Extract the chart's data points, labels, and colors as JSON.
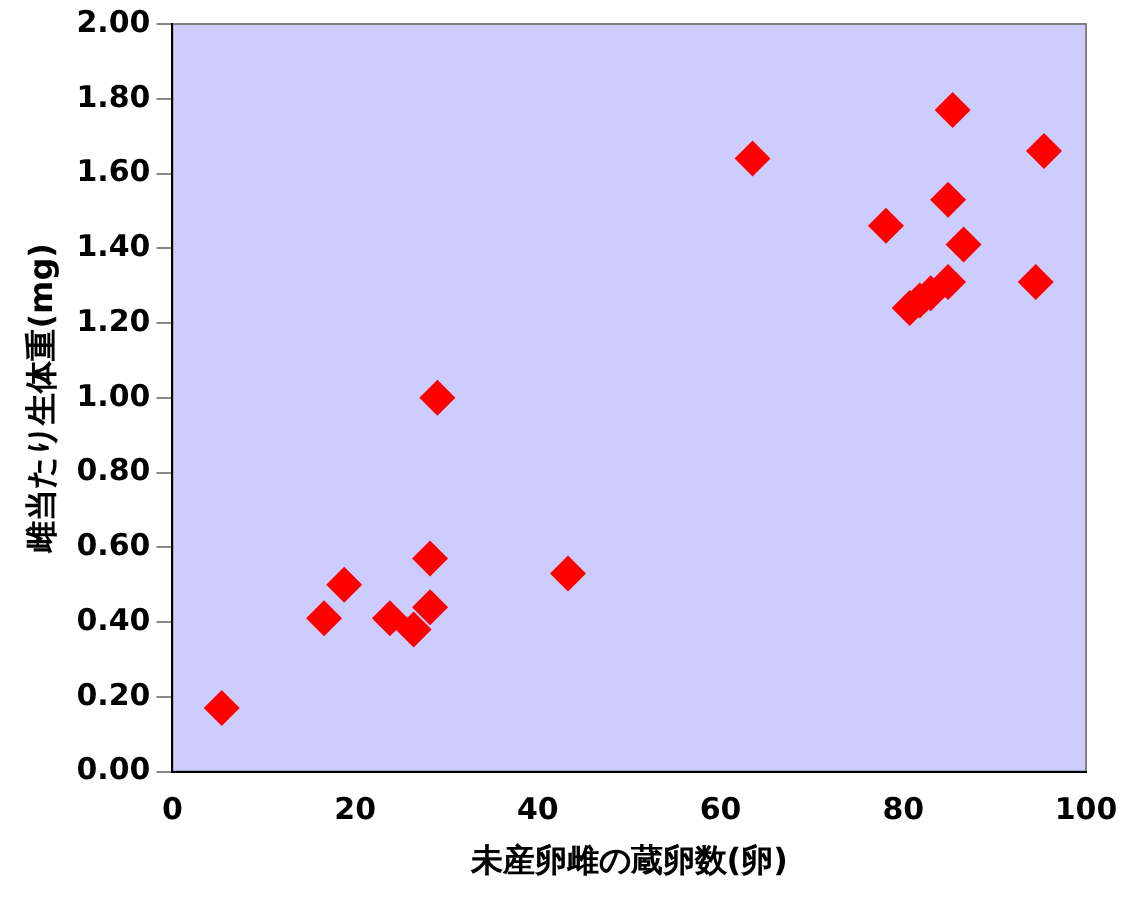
{
  "chart_data": {
    "type": "scatter",
    "xlabel": "未産卵雌の蔵卵数(卵)",
    "ylabel": "雌当たり生体重(mg)",
    "x": [
      5.4,
      16.6,
      18.8,
      23.8,
      26.4,
      28.2,
      28.2,
      29.0,
      43.3,
      63.5,
      78.1,
      80.7,
      81.8,
      83.0,
      84.9,
      84.9,
      85.4,
      86.6,
      94.5,
      95.4
    ],
    "values": [
      0.17,
      0.41,
      0.5,
      0.41,
      0.38,
      0.44,
      0.57,
      1.0,
      0.53,
      1.64,
      1.46,
      1.24,
      1.26,
      1.28,
      1.31,
      1.53,
      1.77,
      1.41,
      1.31,
      1.66
    ],
    "color": "#ff0000",
    "marker": "diamond",
    "xlim": [
      0,
      100
    ],
    "xticks": [
      0,
      20,
      40,
      60,
      80,
      100
    ],
    "ylim": [
      0,
      2
    ],
    "yticks": [
      {
        "value": 0,
        "label": "0.00"
      },
      {
        "value": 0.2,
        "label": "0.20"
      },
      {
        "value": 0.4,
        "label": "0.40"
      },
      {
        "value": 0.6,
        "label": "0.60"
      },
      {
        "value": 0.8,
        "label": "0.80"
      },
      {
        "value": 1,
        "label": "1.00"
      },
      {
        "value": 1.2,
        "label": "1.20"
      },
      {
        "value": 1.4,
        "label": "1.40"
      },
      {
        "value": 1.6,
        "label": "1.60"
      },
      {
        "value": 1.8,
        "label": "1.80"
      },
      {
        "value": 2,
        "label": "2.00"
      }
    ],
    "grid": false,
    "legend": false
  }
}
